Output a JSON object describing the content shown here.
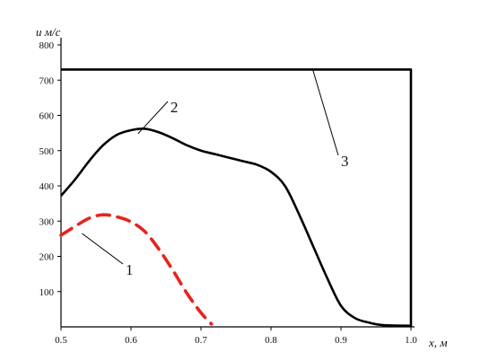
{
  "chart_data": {
    "type": "line",
    "ylabel": "u м/с",
    "xlabel": "x, м",
    "xlim": [
      0.5,
      1.0
    ],
    "ylim": [
      0,
      800
    ],
    "x_ticks": [
      "0.5",
      "0.6",
      "0.7",
      "0.8",
      "0.9",
      "1.0"
    ],
    "x_tick_values": [
      0.5,
      0.6,
      0.7,
      0.8,
      0.9,
      1.0
    ],
    "y_ticks": [
      "100",
      "200",
      "300",
      "400",
      "500",
      "600",
      "700",
      "800"
    ],
    "y_tick_values": [
      100,
      200,
      300,
      400,
      500,
      600,
      700,
      800
    ],
    "grid": false,
    "series": [
      {
        "label": "1",
        "color": "#e8231c",
        "style": "dashed",
        "points": [
          [
            0.5,
            260
          ],
          [
            0.52,
            285
          ],
          [
            0.54,
            308
          ],
          [
            0.56,
            318
          ],
          [
            0.58,
            312
          ],
          [
            0.6,
            298
          ],
          [
            0.62,
            270
          ],
          [
            0.64,
            220
          ],
          [
            0.66,
            160
          ],
          [
            0.68,
            95
          ],
          [
            0.7,
            40
          ],
          [
            0.715,
            8
          ]
        ]
      },
      {
        "label": "2",
        "color": "#000000",
        "style": "solid",
        "points": [
          [
            0.5,
            372
          ],
          [
            0.52,
            418
          ],
          [
            0.54,
            470
          ],
          [
            0.56,
            515
          ],
          [
            0.58,
            545
          ],
          [
            0.6,
            558
          ],
          [
            0.62,
            562
          ],
          [
            0.64,
            552
          ],
          [
            0.66,
            535
          ],
          [
            0.68,
            515
          ],
          [
            0.7,
            500
          ],
          [
            0.72,
            490
          ],
          [
            0.74,
            480
          ],
          [
            0.76,
            470
          ],
          [
            0.78,
            460
          ],
          [
            0.8,
            440
          ],
          [
            0.82,
            400
          ],
          [
            0.84,
            320
          ],
          [
            0.86,
            230
          ],
          [
            0.88,
            140
          ],
          [
            0.9,
            60
          ],
          [
            0.92,
            25
          ],
          [
            0.94,
            12
          ],
          [
            0.96,
            5
          ],
          [
            1.0,
            3
          ]
        ]
      },
      {
        "label": "3",
        "color": "#000000",
        "style": "solid",
        "points": [
          [
            0.5,
            730
          ],
          [
            1.0,
            730
          ],
          [
            1.0,
            0
          ]
        ]
      }
    ]
  }
}
